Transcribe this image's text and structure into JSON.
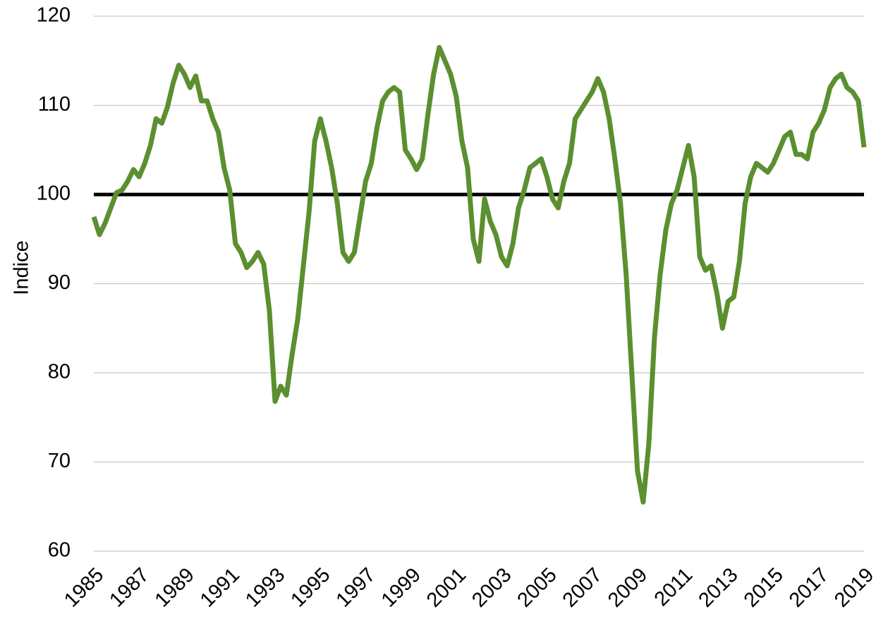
{
  "chart_data": {
    "type": "line",
    "y_label": "Indice",
    "x": [
      1985,
      1985.25,
      1985.5,
      1985.75,
      1986,
      1986.25,
      1986.5,
      1986.75,
      1987,
      1987.25,
      1987.5,
      1987.75,
      1988,
      1988.25,
      1988.5,
      1988.75,
      1989,
      1989.25,
      1989.5,
      1989.75,
      1990,
      1990.25,
      1990.5,
      1990.75,
      1991,
      1991.25,
      1991.5,
      1991.75,
      1992,
      1992.25,
      1992.5,
      1992.75,
      1993,
      1993.25,
      1993.5,
      1993.75,
      1994,
      1994.25,
      1994.5,
      1994.75,
      1995,
      1995.25,
      1995.5,
      1995.75,
      1996,
      1996.25,
      1996.5,
      1996.75,
      1997,
      1997.25,
      1997.5,
      1997.75,
      1998,
      1998.25,
      1998.5,
      1998.75,
      1999,
      1999.25,
      1999.5,
      1999.75,
      2000,
      2000.25,
      2000.5,
      2000.75,
      2001,
      2001.25,
      2001.5,
      2001.75,
      2002,
      2002.25,
      2002.5,
      2002.75,
      2003,
      2003.25,
      2003.5,
      2003.75,
      2004,
      2004.25,
      2004.5,
      2004.75,
      2005,
      2005.25,
      2005.5,
      2005.75,
      2006,
      2006.25,
      2006.5,
      2006.75,
      2007,
      2007.25,
      2007.5,
      2007.75,
      2008,
      2008.25,
      2008.5,
      2008.75,
      2009,
      2009.25,
      2009.5,
      2009.75,
      2010,
      2010.25,
      2010.5,
      2010.75,
      2011,
      2011.25,
      2011.5,
      2011.75,
      2012,
      2012.25,
      2012.5,
      2012.75,
      2013,
      2013.25,
      2013.5,
      2013.75,
      2014,
      2014.25,
      2014.5,
      2014.75,
      2015,
      2015.25,
      2015.5,
      2015.75,
      2016,
      2016.25,
      2016.5,
      2016.75,
      2017,
      2017.25,
      2017.5,
      2017.75,
      2018,
      2018.25,
      2018.5,
      2018.75,
      2019
    ],
    "series": [
      {
        "color": "#5b8f2f",
        "values": [
          97.5,
          95.5,
          96.8,
          98.5,
          100.2,
          100.5,
          101.5,
          102.8,
          102,
          103.5,
          105.5,
          108.5,
          108,
          109.8,
          112.5,
          114.5,
          113.5,
          112,
          113.3,
          110.5,
          110.5,
          108.5,
          107,
          103,
          100.5,
          94.5,
          93.5,
          91.8,
          92.5,
          93.5,
          92.2,
          87,
          76.8,
          78.5,
          77.5,
          82,
          86,
          92,
          98,
          106,
          108.5,
          106,
          103,
          99,
          93.5,
          92.5,
          93.5,
          97.5,
          101.5,
          103.5,
          107.5,
          110.5,
          111.5,
          112,
          111.5,
          105,
          104,
          102.8,
          104,
          109,
          113.5,
          116.5,
          115,
          113.5,
          111,
          106,
          103,
          95,
          92.5,
          99.5,
          97,
          95.5,
          93,
          92,
          94.5,
          98.5,
          100.5,
          103,
          103.5,
          104,
          102,
          99.5,
          98.5,
          101.5,
          103.5,
          108.5,
          109.5,
          110.5,
          111.5,
          113,
          111.5,
          108.5,
          104,
          99,
          91,
          80,
          69,
          65.5,
          72,
          84,
          91,
          96,
          99,
          100.5,
          103,
          105.5,
          102,
          93,
          91.5,
          92,
          89,
          85,
          88,
          88.5,
          92.5,
          99,
          102,
          103.5,
          103,
          102.5,
          103.5,
          105,
          106.5,
          107,
          104.5,
          104.5,
          104,
          107,
          108,
          109.5,
          112,
          113,
          113.5,
          112,
          111.5,
          110.5,
          105.3
        ]
      }
    ],
    "reference_line": 100,
    "reference_color": "#000000",
    "xlim": [
      1985,
      2019
    ],
    "xticks": [
      1985,
      1987,
      1989,
      1991,
      1993,
      1995,
      1997,
      1999,
      2001,
      2003,
      2005,
      2007,
      2009,
      2011,
      2013,
      2015,
      2017,
      2019
    ],
    "ylim": [
      60,
      120
    ],
    "yticks": [
      60,
      70,
      80,
      90,
      100,
      110,
      120
    ],
    "grid": true
  }
}
